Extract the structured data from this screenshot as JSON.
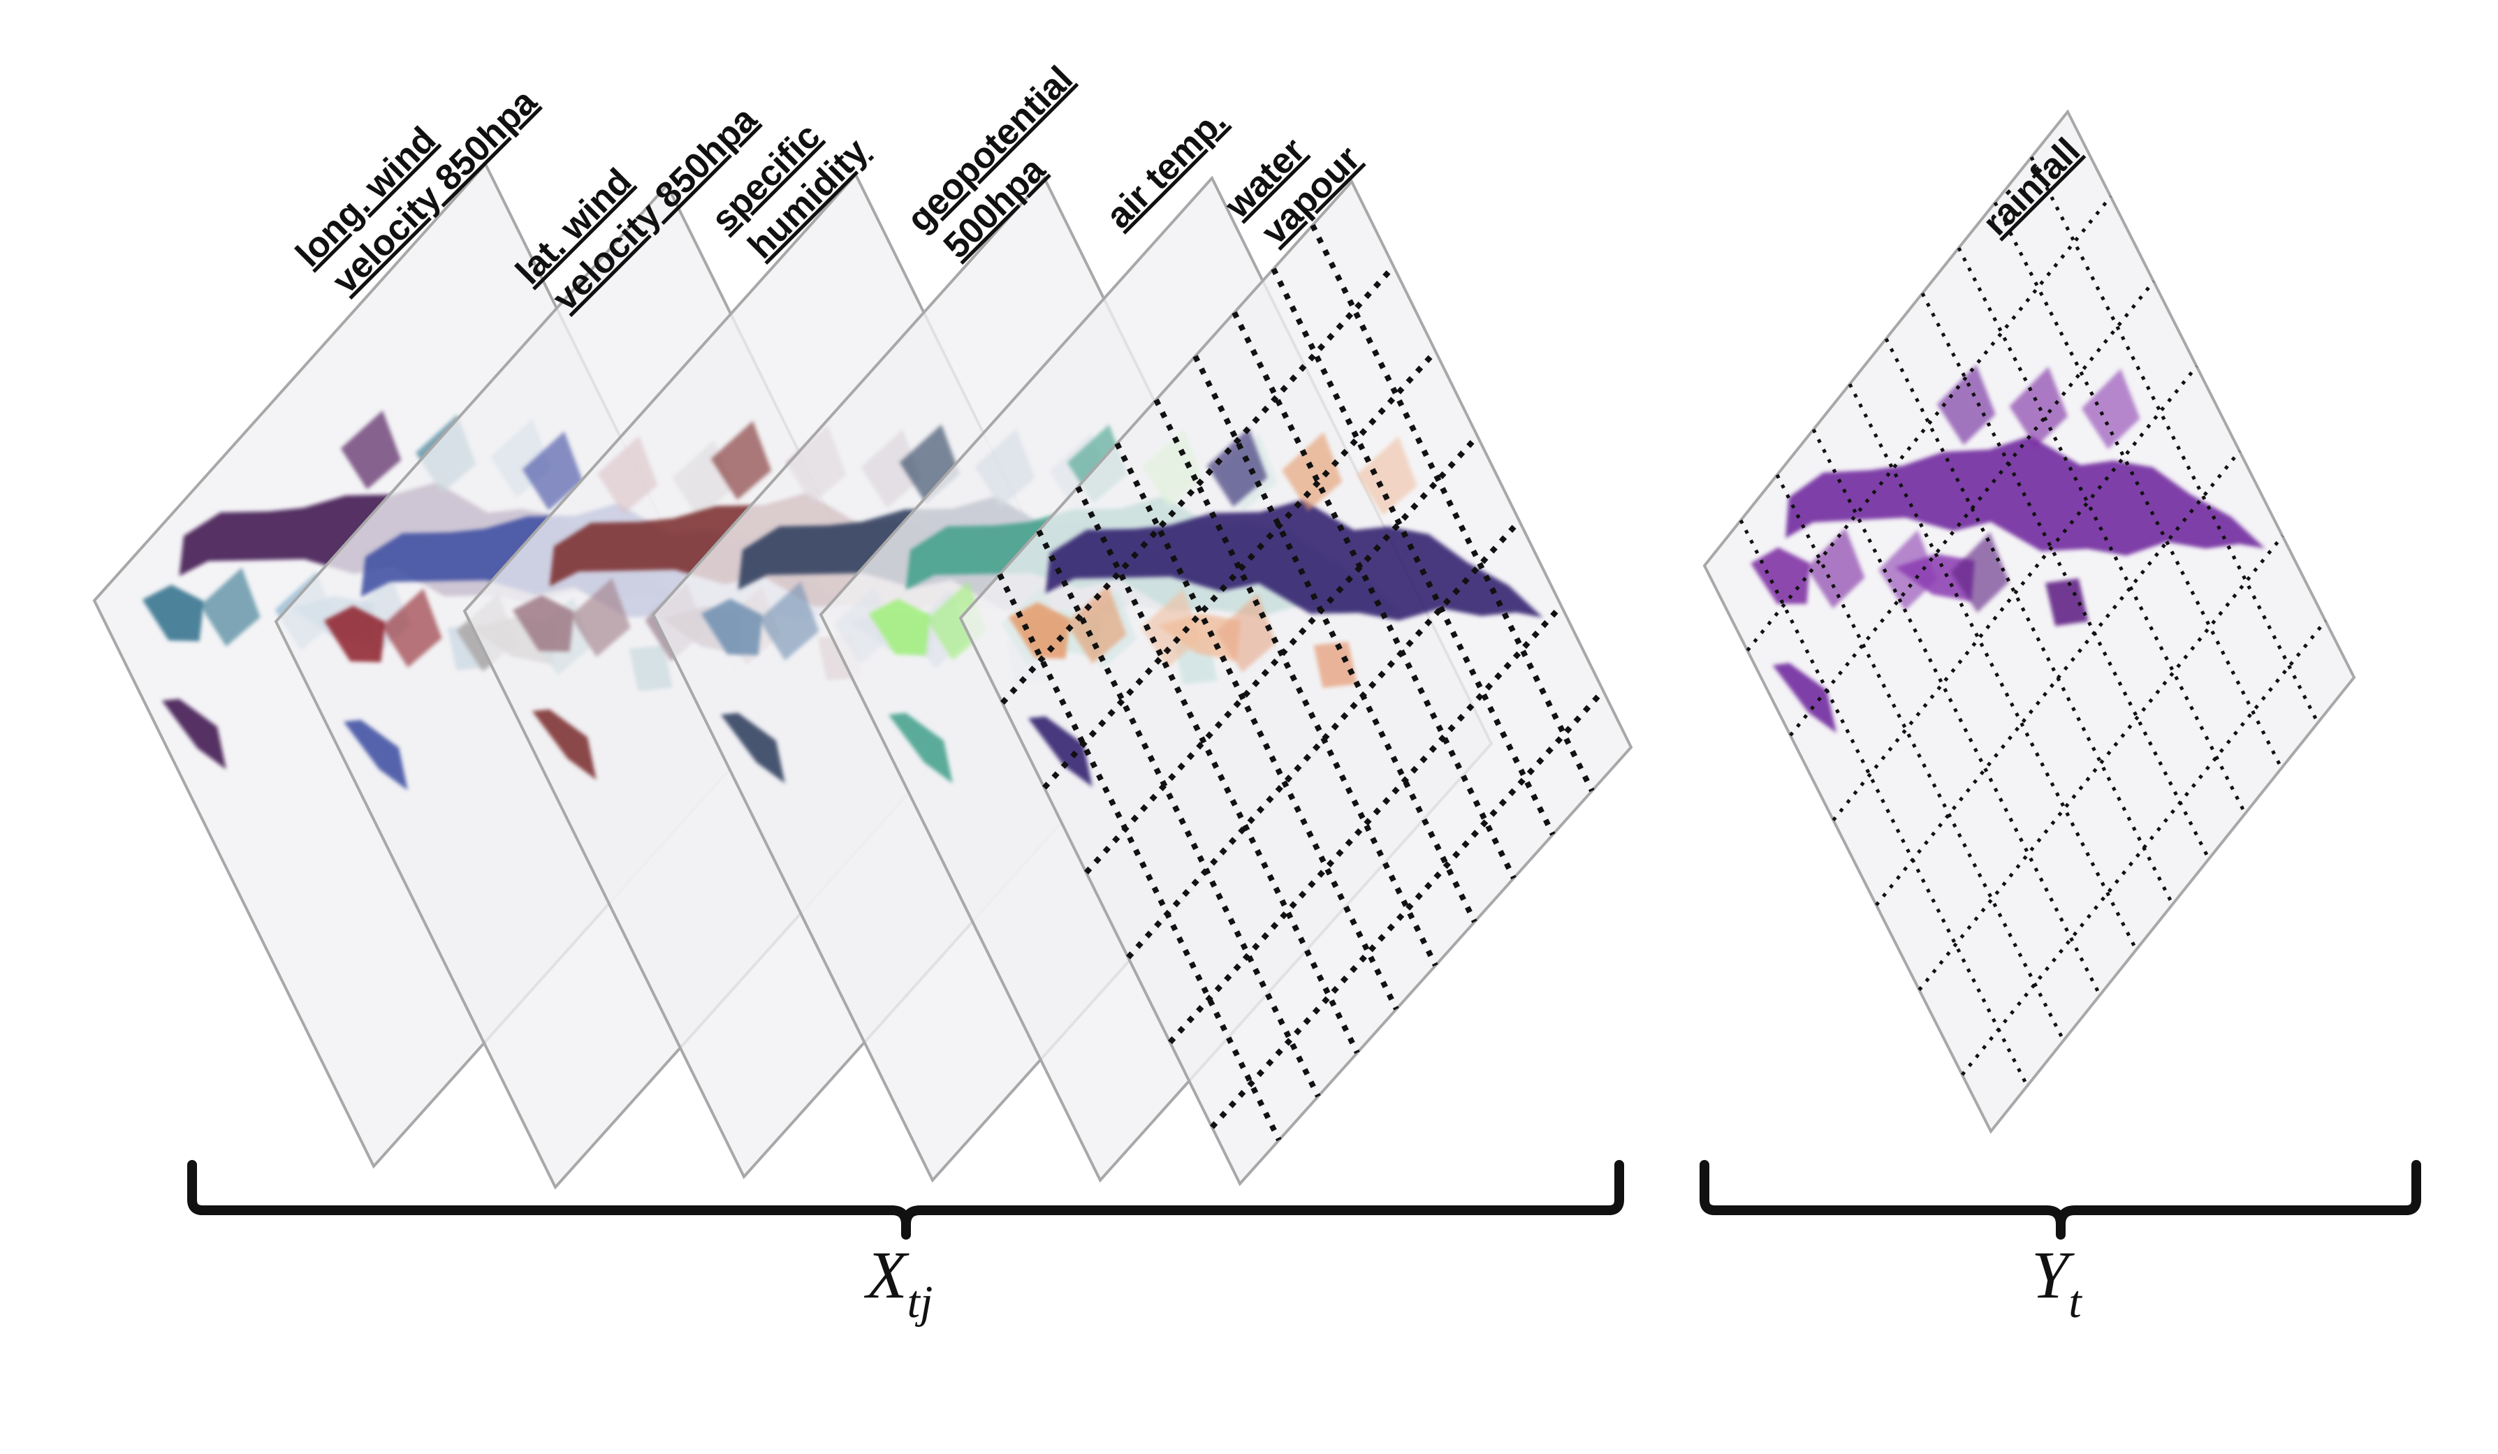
{
  "input_layers": [
    {
      "label_lines": [
        "long. wind",
        "velocity 850hpa"
      ],
      "palette": [
        "#3b0a4a",
        "#2f6f8a",
        "#7aa7c6",
        "#5d8fb4"
      ],
      "grid": false
    },
    {
      "label_lines": [
        "lat. wind",
        "velocity 850hpa"
      ],
      "palette": [
        "#3a4aa0",
        "#8d1f2a",
        "#9a8f8a",
        "#5f9aa4"
      ],
      "grid": false
    },
    {
      "label_lines": [
        "specific",
        "humidity"
      ],
      "palette": [
        "#7a2a2a",
        "#9e7a85",
        "#8a6a7a",
        "#b58a8a"
      ],
      "grid": false
    },
    {
      "label_lines": [
        "geopotential",
        "500hpa"
      ],
      "palette": [
        "#2a3a5a",
        "#6f8fb0",
        "#9fb3c9",
        "#8aa2c0"
      ],
      "grid": false
    },
    {
      "label_lines": [
        "air temp."
      ],
      "palette": [
        "#3f9f8a",
        "#9ff07a",
        "#7ac9b0",
        "#5fb9a9"
      ],
      "grid": false
    },
    {
      "label_lines": [
        "water",
        "vapour"
      ],
      "palette": [
        "#2a1a6a",
        "#e59a6a",
        "#f0c0a0",
        "#e8a888"
      ],
      "grid": true
    }
  ],
  "output_layer": {
    "label_lines": [
      "rainfall"
    ],
    "palette": [
      "#6a1f9a",
      "#7a2aa0",
      "#8a3ab0",
      "#5a1a80"
    ],
    "grid": true
  },
  "x_brace_label": {
    "base": "X",
    "subscript": "tj"
  },
  "y_brace_label": {
    "base": "Y",
    "subscript": "t"
  },
  "colors": {
    "plane_fill": "#f1f1f3",
    "plane_edge": "#a8a8a8",
    "grid_line": "#111111",
    "brace": "#111111"
  }
}
